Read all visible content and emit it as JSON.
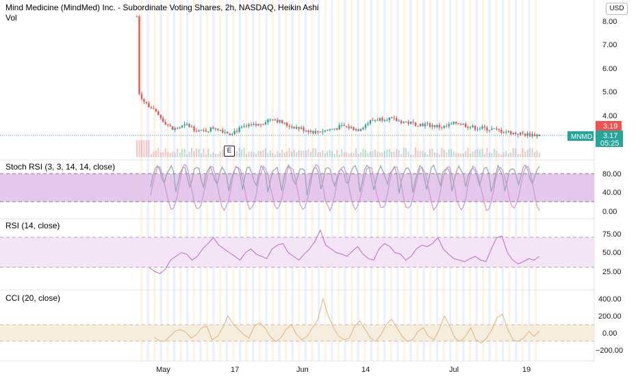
{
  "header": {
    "title": "Mind Medicine (MindMed) Inc. - Subordinate Voting Shares, 2h, NASDAQ, Heikin Ashi",
    "vol_label": "Vol",
    "currency_button": "USD",
    "earnings_marker": "E"
  },
  "price_labels": {
    "symbol": "MNMD",
    "last_price": "3.17",
    "countdown": "05:25",
    "prev_close": "3.19"
  },
  "colors": {
    "up": "#26a69a",
    "down": "#ef5350",
    "stoch_fill": "#e1bee7",
    "rsi_fill": "#f3e5f5",
    "cci_fill": "#f5eedf",
    "stoch_k": "#90a4ae",
    "stoch_d": "#ce93d8",
    "rsi_line": "#ba68c8",
    "cci_line": "#e0b07a",
    "session_band": "#fff3e0",
    "session_band_alt": "#e8f0fe"
  },
  "chart_data": [
    {
      "type": "candlestick",
      "name": "price",
      "x": [
        "May",
        "17",
        "Jun",
        "14",
        "Jul",
        "19"
      ],
      "ylim": [
        2.2,
        8.5
      ],
      "yticks": [
        "8.00",
        "7.00",
        "6.00",
        "5.00",
        "4.00"
      ],
      "series_points": [
        [
          0,
          8.2
        ],
        [
          0.5,
          5.0
        ],
        [
          2,
          4.6
        ],
        [
          6,
          4.0
        ],
        [
          10,
          3.4
        ],
        [
          14,
          3.6
        ],
        [
          18,
          3.3
        ],
        [
          22,
          3.5
        ],
        [
          26,
          3.25
        ],
        [
          30,
          3.5
        ],
        [
          34,
          3.6
        ],
        [
          38,
          3.9
        ],
        [
          42,
          3.6
        ],
        [
          46,
          3.45
        ],
        [
          50,
          3.3
        ],
        [
          54,
          3.4
        ],
        [
          58,
          3.55
        ],
        [
          62,
          3.4
        ],
        [
          66,
          3.8
        ],
        [
          70,
          3.9
        ],
        [
          74,
          3.75
        ],
        [
          78,
          3.65
        ],
        [
          82,
          3.6
        ],
        [
          86,
          3.5
        ],
        [
          90,
          3.7
        ],
        [
          94,
          3.5
        ],
        [
          98,
          3.45
        ],
        [
          102,
          3.35
        ],
        [
          106,
          3.25
        ],
        [
          110,
          3.19
        ],
        [
          113,
          3.17
        ]
      ],
      "volume_note": "volume bars"
    },
    {
      "type": "line",
      "name": "Stoch RSI (3, 3, 14, 14, close)",
      "title": "Stoch RSI (3, 3, 14, 14, close)",
      "ylim": [
        0,
        100
      ],
      "yticks": [
        "80.00",
        "40.00",
        "0.00"
      ],
      "bands": [
        20,
        80
      ]
    },
    {
      "type": "line",
      "name": "RSI (14, close)",
      "title": "RSI (14, close)",
      "ylim": [
        15,
        85
      ],
      "yticks": [
        "75.00",
        "50.00",
        "25.00"
      ],
      "bands": [
        30,
        70
      ],
      "values": [
        30,
        25,
        22,
        28,
        40,
        45,
        50,
        48,
        40,
        45,
        55,
        62,
        70,
        60,
        55,
        50,
        45,
        40,
        50,
        55,
        48,
        45,
        42,
        55,
        60,
        62,
        50,
        45,
        40,
        48,
        55,
        65,
        80,
        60,
        55,
        50,
        48,
        45,
        52,
        58,
        48,
        42,
        40,
        55,
        62,
        58,
        50,
        48,
        40,
        45,
        55,
        60,
        58,
        62,
        70,
        55,
        48,
        42,
        40,
        38,
        42,
        45,
        40,
        38,
        55,
        70,
        72,
        50,
        40,
        35,
        38,
        42,
        40,
        45
      ]
    },
    {
      "type": "line",
      "name": "CCI (20, close)",
      "title": "CCI (20, close)",
      "ylim": [
        -280,
        460
      ],
      "yticks": [
        "400.00",
        "200.00",
        "0.00",
        "−200.00"
      ],
      "bands": [
        -100,
        100
      ],
      "values": [
        -50,
        -90,
        -100,
        -40,
        20,
        40,
        10,
        -60,
        -20,
        60,
        80,
        -80,
        -40,
        60,
        200,
        100,
        40,
        -20,
        -60,
        80,
        120,
        60,
        -40,
        -100,
        -60,
        40,
        100,
        -20,
        -80,
        -40,
        60,
        150,
        400,
        200,
        60,
        -40,
        -80,
        -60,
        80,
        140,
        40,
        -60,
        -100,
        -20,
        100,
        160,
        60,
        -40,
        -100,
        -80,
        20,
        60,
        -40,
        -80,
        40,
        200,
        80,
        -60,
        -100,
        -40,
        60,
        -80,
        -120,
        -60,
        40,
        180,
        220,
        40,
        -80,
        -100,
        -60,
        20,
        -40,
        20
      ]
    }
  ]
}
